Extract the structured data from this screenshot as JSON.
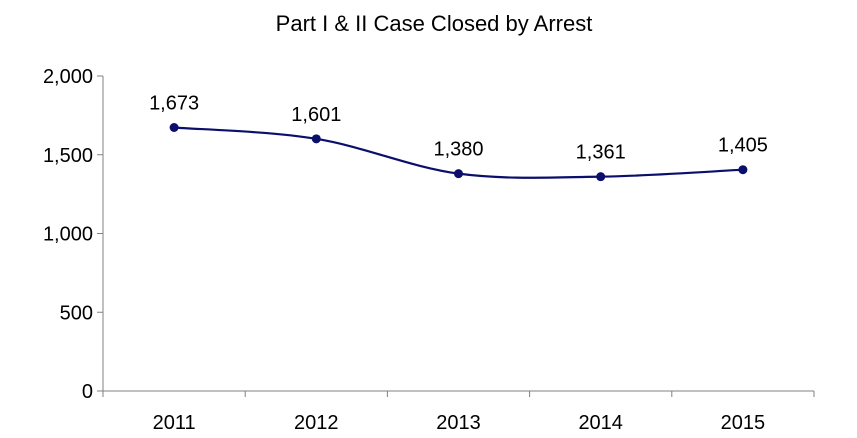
{
  "chart_data": {
    "type": "line",
    "title": "Part I & II Case Closed by Arrest",
    "categories": [
      "2011",
      "2012",
      "2013",
      "2014",
      "2015"
    ],
    "series": [
      {
        "values": [
          1673,
          1601,
          1380,
          1361,
          1405
        ],
        "labels": [
          "1,673",
          "1,601",
          "1,380",
          "1,361",
          "1,405"
        ],
        "color": "#0b0f6b"
      }
    ],
    "y_ticks": [
      {
        "value": 0,
        "label": "0"
      },
      {
        "value": 500,
        "label": "500"
      },
      {
        "value": 1000,
        "label": "1,000"
      },
      {
        "value": 1500,
        "label": "1,500"
      },
      {
        "value": 2000,
        "label": "2,000"
      }
    ],
    "ylim": [
      0,
      2000
    ],
    "xlabel": "",
    "ylabel": "",
    "grid": false,
    "legend": "none",
    "smooth": true
  }
}
